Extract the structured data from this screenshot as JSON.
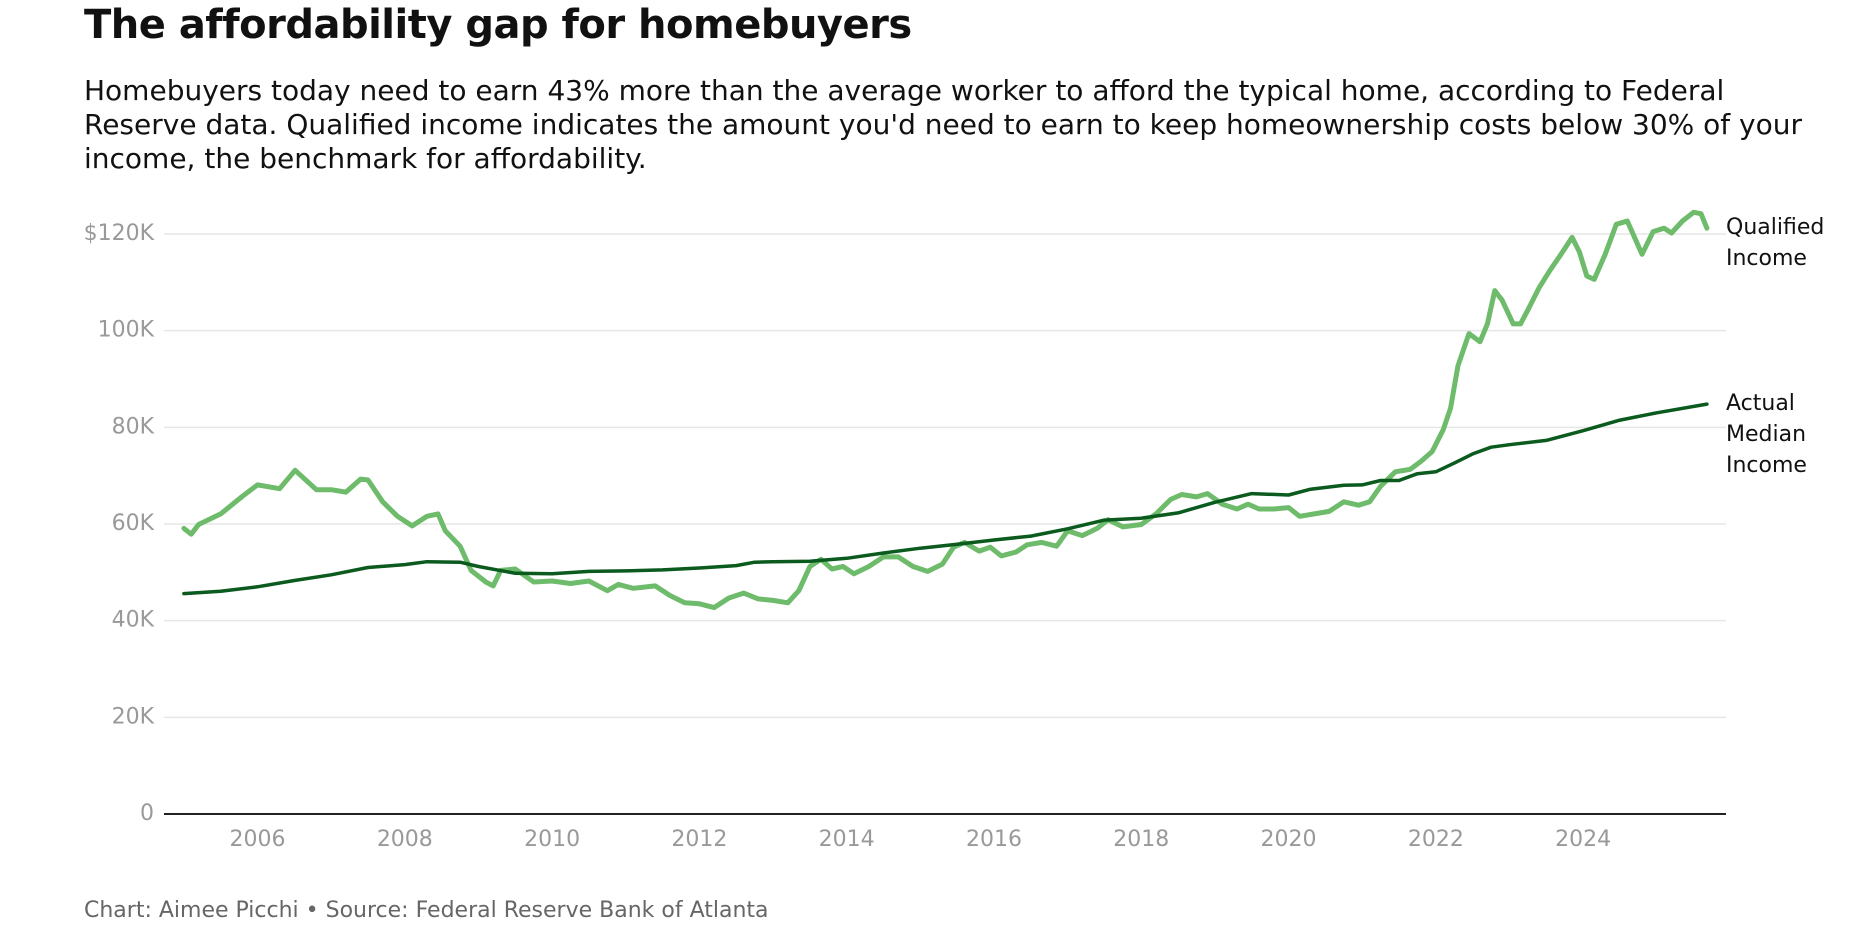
{
  "chart_data": {
    "type": "line",
    "title": "The affordability gap for homebuyers",
    "subtitle": "Homebuyers today need to earn 43% more than the average worker to afford the typical home, according to Federal Reserve data. Qualified income indicates the amount you'd need to earn to keep homeownership costs below 30% of your income, the benchmark for affordability.",
    "credit": "Chart: Aimee Picchi • Source: Federal Reserve Bank of Atlanta",
    "xlim": [
      2004.73,
      2025.94
    ],
    "xticks": [
      2006,
      2008,
      2010,
      2012,
      2014,
      2016,
      2018,
      2020,
      2022,
      2024
    ],
    "ylim": [
      0,
      120000
    ],
    "yticks": [
      {
        "value": 0,
        "label": "0"
      },
      {
        "value": 20000,
        "label": "20K"
      },
      {
        "value": 40000,
        "label": "40K"
      },
      {
        "value": 60000,
        "label": "60K"
      },
      {
        "value": 80000,
        "label": "80K"
      },
      {
        "value": 100000,
        "label": "100K"
      },
      {
        "value": 120000,
        "label": "$120K"
      }
    ],
    "grid": true,
    "series": [
      {
        "name": "Qualified Income",
        "color": "#6dbb6b",
        "x": [
          2005.0,
          2005.1,
          2005.2,
          2005.5,
          2005.8,
          2006.0,
          2006.3,
          2006.51,
          2006.8,
          2007.0,
          2007.2,
          2007.4,
          2007.5,
          2007.7,
          2007.9,
          2008.1,
          2008.3,
          2008.45,
          2008.55,
          2008.75,
          2008.9,
          2009.1,
          2009.2,
          2009.3,
          2009.5,
          2009.75,
          2010.0,
          2010.25,
          2010.5,
          2010.75,
          2010.9,
          2011.1,
          2011.4,
          2011.6,
          2011.8,
          2012.0,
          2012.2,
          2012.4,
          2012.6,
          2012.8,
          2013.0,
          2013.2,
          2013.35,
          2013.5,
          2013.65,
          2013.8,
          2013.95,
          2014.1,
          2014.3,
          2014.5,
          2014.7,
          2014.9,
          2015.1,
          2015.3,
          2015.45,
          2015.6,
          2015.8,
          2015.95,
          2016.1,
          2016.3,
          2016.45,
          2016.65,
          2016.85,
          2017.0,
          2017.2,
          2017.4,
          2017.55,
          2017.75,
          2018.0,
          2018.2,
          2018.4,
          2018.55,
          2018.75,
          2018.9,
          2019.1,
          2019.3,
          2019.45,
          2019.6,
          2019.8,
          2020.0,
          2020.15,
          2020.35,
          2020.55,
          2020.75,
          2020.95,
          2021.1,
          2021.25,
          2021.45,
          2021.65,
          2021.8,
          2021.95,
          2022.1,
          2022.2,
          2022.3,
          2022.45,
          2022.6,
          2022.7,
          2022.8,
          2022.9,
          2023.05,
          2023.15,
          2023.25,
          2023.4,
          2023.55,
          2023.7,
          2023.85,
          2023.95,
          2024.05,
          2024.15,
          2024.3,
          2024.45,
          2024.6,
          2024.8,
          2024.95,
          2025.1,
          2025.2,
          2025.35,
          2025.5,
          2025.6,
          2025.68
        ],
        "values": [
          59100,
          57900,
          59900,
          62100,
          65800,
          68100,
          67300,
          71100,
          67100,
          67100,
          66600,
          69300,
          69100,
          64600,
          61600,
          59600,
          61600,
          62100,
          58600,
          55400,
          50400,
          48000,
          47200,
          50400,
          50700,
          48000,
          48200,
          47700,
          48200,
          46200,
          47500,
          46700,
          47200,
          45200,
          43700,
          43500,
          42700,
          44700,
          45700,
          44500,
          44200,
          43700,
          46200,
          51200,
          52700,
          50700,
          51200,
          49700,
          51200,
          53200,
          53200,
          51200,
          50200,
          51700,
          55200,
          56200,
          54400,
          55200,
          53400,
          54200,
          55700,
          56200,
          55400,
          58600,
          57600,
          59100,
          60900,
          59400,
          59900,
          62100,
          65100,
          66100,
          65600,
          66300,
          64100,
          63100,
          64100,
          63100,
          63100,
          63400,
          61600,
          62100,
          62600,
          64600,
          63900,
          64600,
          67800,
          70800,
          71300,
          73000,
          75000,
          79500,
          84000,
          92700,
          99400,
          97700,
          101400,
          108300,
          106300,
          101400,
          101400,
          104300,
          108800,
          112500,
          115800,
          119300,
          116300,
          111300,
          110600,
          115800,
          122000,
          122700,
          115800,
          120500,
          121200,
          120200,
          122700,
          124500,
          124200,
          121200
        ]
      },
      {
        "name": "Actual Median Income",
        "color": "#0b5a1e",
        "x": [
          2005.0,
          2005.5,
          2006.0,
          2006.5,
          2007.0,
          2007.5,
          2008.0,
          2008.3,
          2008.75,
          2009.0,
          2009.5,
          2010.0,
          2010.5,
          2011.0,
          2011.5,
          2012.0,
          2012.5,
          2012.75,
          2013.0,
          2013.5,
          2014.0,
          2014.5,
          2015.0,
          2015.5,
          2016.0,
          2016.5,
          2017.0,
          2017.5,
          2018.0,
          2018.5,
          2019.0,
          2019.5,
          2020.0,
          2020.3,
          2020.75,
          2021.0,
          2021.25,
          2021.5,
          2021.75,
          2022.0,
          2022.25,
          2022.5,
          2022.75,
          2023.0,
          2023.5,
          2024.0,
          2024.5,
          2025.0,
          2025.68
        ],
        "values": [
          45600,
          46100,
          47000,
          48300,
          49500,
          51000,
          51600,
          52200,
          52100,
          51200,
          49800,
          49700,
          50200,
          50300,
          50500,
          50900,
          51400,
          52100,
          52200,
          52300,
          52900,
          54000,
          55000,
          55800,
          56700,
          57500,
          59000,
          60800,
          61200,
          62300,
          64500,
          66300,
          66000,
          67200,
          68000,
          68100,
          69000,
          69000,
          70400,
          70800,
          72600,
          74500,
          75900,
          76400,
          77300,
          79300,
          81500,
          83000,
          84800
        ]
      }
    ]
  }
}
